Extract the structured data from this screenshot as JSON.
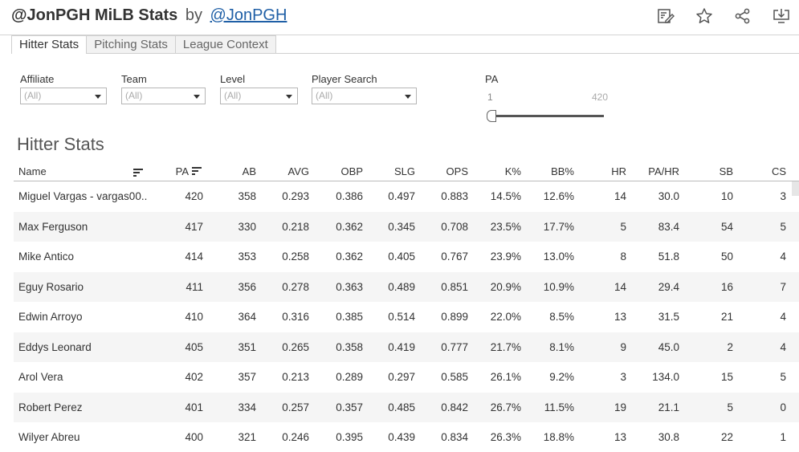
{
  "header": {
    "title": "@JonPGH MiLB Stats",
    "by": "by",
    "author_link": "@JonPGH",
    "icons": [
      "edit-icon",
      "star-icon",
      "share-icon",
      "download-icon"
    ]
  },
  "tabs": [
    {
      "label": "Hitter Stats",
      "active": true
    },
    {
      "label": "Pitching Stats",
      "active": false
    },
    {
      "label": "League Context",
      "active": false
    }
  ],
  "filters": {
    "affiliate": {
      "label": "Affiliate",
      "value": "(All)"
    },
    "team": {
      "label": "Team",
      "value": "(All)"
    },
    "level": {
      "label": "Level",
      "value": "(All)"
    },
    "player_search": {
      "label": "Player Search",
      "value": "(All)"
    },
    "pa": {
      "label": "PA",
      "min": "1",
      "max": "420"
    }
  },
  "section_title": "Hitter Stats",
  "table": {
    "columns": [
      "Name",
      "PA",
      "AB",
      "AVG",
      "OBP",
      "SLG",
      "OPS",
      "K%",
      "BB%",
      "HR",
      "PA/HR",
      "SB",
      "CS"
    ],
    "rows": [
      [
        "Miguel Vargas - vargas00..",
        "420",
        "358",
        "0.293",
        "0.386",
        "0.497",
        "0.883",
        "14.5%",
        "12.6%",
        "14",
        "30.0",
        "10",
        "3"
      ],
      [
        "Max Ferguson",
        "417",
        "330",
        "0.218",
        "0.362",
        "0.345",
        "0.708",
        "23.5%",
        "17.7%",
        "5",
        "83.4",
        "54",
        "5"
      ],
      [
        "Mike Antico",
        "414",
        "353",
        "0.258",
        "0.362",
        "0.405",
        "0.767",
        "23.9%",
        "13.0%",
        "8",
        "51.8",
        "50",
        "4"
      ],
      [
        "Eguy Rosario",
        "411",
        "356",
        "0.278",
        "0.363",
        "0.489",
        "0.851",
        "20.9%",
        "10.9%",
        "14",
        "29.4",
        "16",
        "7"
      ],
      [
        "Edwin Arroyo",
        "410",
        "364",
        "0.316",
        "0.385",
        "0.514",
        "0.899",
        "22.0%",
        "8.5%",
        "13",
        "31.5",
        "21",
        "4"
      ],
      [
        "Eddys Leonard",
        "405",
        "351",
        "0.265",
        "0.358",
        "0.419",
        "0.777",
        "21.7%",
        "8.1%",
        "9",
        "45.0",
        "2",
        "4"
      ],
      [
        "Arol Vera",
        "402",
        "357",
        "0.213",
        "0.289",
        "0.297",
        "0.585",
        "26.1%",
        "9.2%",
        "3",
        "134.0",
        "15",
        "5"
      ],
      [
        "Robert Perez",
        "401",
        "334",
        "0.257",
        "0.357",
        "0.485",
        "0.842",
        "26.7%",
        "11.5%",
        "19",
        "21.1",
        "5",
        "0"
      ],
      [
        "Wilyer Abreu",
        "400",
        "321",
        "0.246",
        "0.395",
        "0.439",
        "0.834",
        "26.3%",
        "18.8%",
        "13",
        "30.8",
        "22",
        "1"
      ]
    ]
  }
}
